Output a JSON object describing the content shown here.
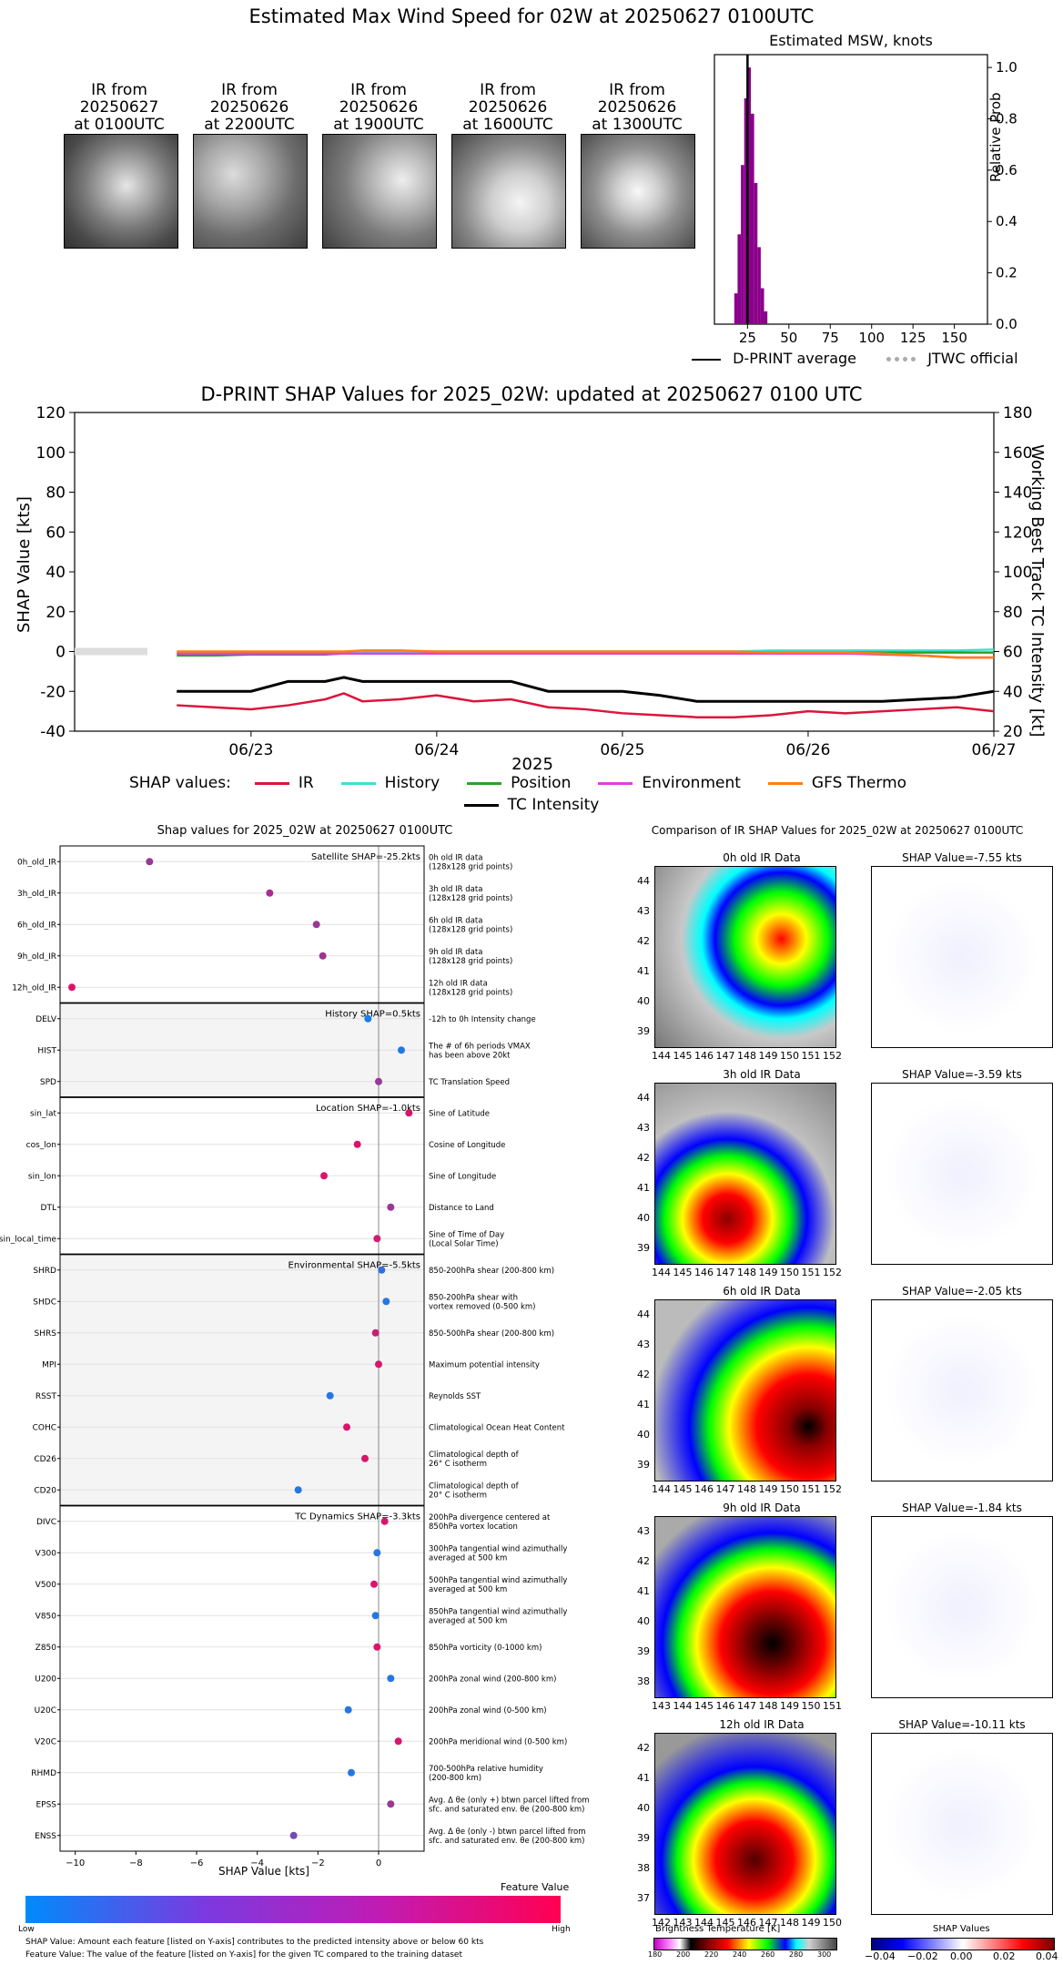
{
  "suptitle": "Estimated Max Wind Speed for 02W at 20250627 0100UTC",
  "thumbs": [
    {
      "l1": "IR from",
      "l2": "20250627",
      "l3": "at 0100UTC"
    },
    {
      "l1": "IR from",
      "l2": "20250626",
      "l3": "at 2200UTC"
    },
    {
      "l1": "IR from",
      "l2": "20250626",
      "l3": "at 1900UTC"
    },
    {
      "l1": "IR from",
      "l2": "20250626",
      "l3": "at 1600UTC"
    },
    {
      "l1": "IR from",
      "l2": "20250626",
      "l3": "at 1300UTC"
    }
  ],
  "msw": {
    "title": "Estimated MSW, knots",
    "ylabel": "Relative Prob",
    "xticks": [
      "25",
      "50",
      "75",
      "100",
      "125",
      "150"
    ],
    "yticks": [
      "0.0",
      "0.2",
      "0.4",
      "0.6",
      "0.8",
      "1.0"
    ],
    "legend_avg": "D-PRINT average",
    "legend_jtwc": "JTWC official"
  },
  "shap_ts": {
    "title": "D-PRINT SHAP Values for 2025_02W: updated at 20250627 0100 UTC",
    "ylabel_left": "SHAP Value [kts]",
    "ylabel_right": "Working Best Track TC Intensity [kt]",
    "xlabel": "2025",
    "yticks_left": [
      "120",
      "100",
      "80",
      "60",
      "40",
      "20",
      "0",
      "-20",
      "-40"
    ],
    "yticks_right": [
      "180",
      "160",
      "140",
      "120",
      "100",
      "80",
      "60",
      "40",
      "20"
    ],
    "xticks": [
      "06/23",
      "06/24",
      "06/25",
      "06/26",
      "06/27"
    ],
    "legend_prefix": "SHAP values:",
    "legend": [
      "IR",
      "History",
      "Position",
      "Environment",
      "GFS Thermo",
      "TC Intensity"
    ],
    "colors": {
      "IR": "#dc143c",
      "History": "#40e0d0",
      "Position": "#2ca02c",
      "Environment": "#e040e0",
      "GFS Thermo": "#ff7f0e",
      "TC Intensity": "#000000"
    }
  },
  "chart_data": [
    {
      "type": "bar",
      "title": "Estimated MSW, knots",
      "ylabel": "Relative Prob",
      "xlim": [
        5,
        170
      ],
      "ylim": [
        0,
        1.05
      ],
      "categories": [
        18,
        20,
        22,
        24,
        26,
        28,
        30,
        32,
        34,
        36
      ],
      "values": [
        0.12,
        0.35,
        0.62,
        0.88,
        1.0,
        0.82,
        0.55,
        0.3,
        0.14,
        0.05
      ],
      "dprint_average": 25
    },
    {
      "type": "line",
      "title": "D-PRINT SHAP Values for 2025_02W: updated at 20250627 0100 UTC",
      "xlabel": "2025",
      "ylabel": "SHAP Value [kts]",
      "ylim": [
        -40,
        120
      ],
      "y2lim": [
        20,
        180
      ],
      "x": [
        22.6,
        22.8,
        23.0,
        23.2,
        23.4,
        23.5,
        23.6,
        23.8,
        24.0,
        24.2,
        24.4,
        24.6,
        24.8,
        25.0,
        25.2,
        25.4,
        25.6,
        25.8,
        26.0,
        26.2,
        26.4,
        26.6,
        26.8,
        27.0
      ],
      "series": [
        {
          "name": "IR",
          "values": [
            -27,
            -28,
            -29,
            -27,
            -24,
            -21,
            -25,
            -24,
            -22,
            -25,
            -24,
            -28,
            -29,
            -31,
            -32,
            -33,
            -33,
            -32,
            -30,
            -31,
            -30,
            -29,
            -28,
            -30
          ]
        },
        {
          "name": "History",
          "values": [
            -1,
            -1,
            -1,
            -1,
            -0.5,
            -0.5,
            -0.5,
            0,
            0,
            0,
            0,
            0,
            0,
            0,
            0,
            0,
            0,
            0.5,
            0.5,
            0.5,
            0.5,
            0.5,
            0.5,
            1
          ]
        },
        {
          "name": "Position",
          "values": [
            -2,
            -2,
            -1.5,
            -1.5,
            -1.5,
            -1,
            -1,
            -1,
            -1,
            -1,
            -1,
            -1,
            -0.5,
            -0.5,
            -0.5,
            -0.5,
            -0.5,
            -0.5,
            -0.5,
            -0.5,
            -0.5,
            -0.5,
            -0.5,
            -0.5
          ]
        },
        {
          "name": "Environment",
          "values": [
            -1,
            -1,
            -1,
            -1,
            -1,
            -1,
            -1,
            -1,
            -1,
            -1,
            -1,
            -1,
            -1,
            -1,
            -1,
            -1,
            -1,
            -1,
            -1,
            -1,
            -1.5,
            -2,
            -3,
            -3
          ]
        },
        {
          "name": "GFS Thermo",
          "values": [
            0,
            0,
            0,
            0,
            0,
            0,
            0.5,
            0.5,
            0,
            0,
            0,
            0,
            0,
            0,
            0,
            0,
            0,
            -0.5,
            -0.5,
            -0.5,
            -1,
            -2,
            -3,
            -3
          ]
        },
        {
          "name": "TC Intensity",
          "values": [
            40,
            40,
            40,
            45,
            45,
            47,
            45,
            45,
            45,
            45,
            45,
            40,
            40,
            40,
            38,
            35,
            35,
            35,
            35,
            35,
            35,
            36,
            37,
            40
          ]
        }
      ]
    },
    {
      "type": "scatter",
      "title": "Shap values for 2025_02W at 20250627 0100UTC",
      "xlabel": "SHAP Value [kts]",
      "xlim": [
        -10.5,
        1.5
      ],
      "categories": [
        "0h_old_IR",
        "3h_old_IR",
        "6h_old_IR",
        "9h_old_IR",
        "12h_old_IR",
        "DELV",
        "HIST",
        "SPD",
        "sin_lat",
        "cos_lon",
        "sin_lon",
        "DTL",
        "sin_local_time",
        "SHRD",
        "SHDC",
        "SHRS",
        "MPI",
        "RSST",
        "COHC",
        "CD26",
        "CD20",
        "DIVC",
        "V300",
        "V500",
        "V850",
        "Z850",
        "U200",
        "U20C",
        "V20C",
        "RHMD",
        "EPSS",
        "ENSS"
      ],
      "values": [
        -7.55,
        -3.59,
        -2.05,
        -1.84,
        -10.11,
        -0.35,
        0.75,
        0.0,
        1.0,
        -0.7,
        -1.8,
        0.4,
        -0.05,
        0.1,
        0.25,
        -0.1,
        0.0,
        -1.6,
        -1.05,
        -0.45,
        -2.65,
        0.2,
        -0.05,
        -0.15,
        -0.1,
        -0.05,
        0.4,
        -1.0,
        0.65,
        -0.9,
        0.4,
        -2.8
      ],
      "feature_values": [
        0.6,
        0.65,
        0.6,
        0.62,
        0.85,
        0.1,
        0.15,
        0.6,
        0.85,
        0.85,
        0.85,
        0.6,
        0.8,
        0.2,
        0.15,
        0.8,
        0.85,
        0.15,
        0.85,
        0.85,
        0.15,
        0.85,
        0.15,
        0.85,
        0.15,
        0.85,
        0.15,
        0.15,
        0.85,
        0.15,
        0.6,
        0.45
      ]
    }
  ],
  "shap_bar": {
    "title": "Shap values for 2025_02W at 20250627 0100UTC",
    "xlabel": "SHAP Value [kts]",
    "xticks": [
      "−10",
      "−8",
      "−6",
      "−4",
      "−2",
      "0"
    ],
    "sections": [
      {
        "label": "Satellite SHAP=-25.2kts"
      },
      {
        "label": "History SHAP=0.5kts"
      },
      {
        "label": "Location SHAP=-1.0kts"
      },
      {
        "label": "Environmental SHAP=-5.5kts"
      },
      {
        "label": "TC Dynamics SHAP=-3.3kts"
      }
    ],
    "features": [
      {
        "name": "0h_old_IR",
        "desc": "0h old IR data\n(128x128 grid points)"
      },
      {
        "name": "3h_old_IR",
        "desc": "3h old IR data\n(128x128 grid points)"
      },
      {
        "name": "6h_old_IR",
        "desc": "6h old IR data\n(128x128 grid points)"
      },
      {
        "name": "9h_old_IR",
        "desc": "9h old IR data\n(128x128 grid points)"
      },
      {
        "name": "12h_old_IR",
        "desc": "12h old IR data\n(128x128 grid points)"
      },
      {
        "name": "DELV",
        "desc": "-12h to 0h Intensity change"
      },
      {
        "name": "HIST",
        "desc": "The # of 6h periods VMAX\nhas been above 20kt"
      },
      {
        "name": "SPD",
        "desc": "TC Translation Speed"
      },
      {
        "name": "sin_lat",
        "desc": "Sine of Latitude"
      },
      {
        "name": "cos_lon",
        "desc": "Cosine of Longitude"
      },
      {
        "name": "sin_lon",
        "desc": "Sine of Longitude"
      },
      {
        "name": "DTL",
        "desc": "Distance to Land"
      },
      {
        "name": "sin_local_time",
        "desc": "Sine of Time of Day\n(Local Solar Time)"
      },
      {
        "name": "SHRD",
        "desc": "850-200hPa shear (200-800 km)"
      },
      {
        "name": "SHDC",
        "desc": "850-200hPa shear with\nvortex removed (0-500 km)"
      },
      {
        "name": "SHRS",
        "desc": "850-500hPa shear (200-800 km)"
      },
      {
        "name": "MPI",
        "desc": "Maximum potential intensity"
      },
      {
        "name": "RSST",
        "desc": "Reynolds SST"
      },
      {
        "name": "COHC",
        "desc": "Climatological Ocean Heat Content"
      },
      {
        "name": "CD26",
        "desc": "Climatological depth of\n26° C isotherm"
      },
      {
        "name": "CD20",
        "desc": "Climatological depth of\n20° C isotherm"
      },
      {
        "name": "DIVC",
        "desc": "200hPa divergence centered at\n850hPa vortex location"
      },
      {
        "name": "V300",
        "desc": "300hPa tangential wind azimuthally\naveraged at 500 km"
      },
      {
        "name": "V500",
        "desc": "500hPa tangential wind azimuthally\naveraged at 500 km"
      },
      {
        "name": "V850",
        "desc": "850hPa tangential wind azimuthally\naveraged at 500 km"
      },
      {
        "name": "Z850",
        "desc": "850hPa vorticity (0-1000 km)"
      },
      {
        "name": "U200",
        "desc": "200hPa zonal wind (200-800 km)"
      },
      {
        "name": "U20C",
        "desc": "200hPa zonal wind (0-500 km)"
      },
      {
        "name": "V20C",
        "desc": "200hPa meridional wind (0-500 km)"
      },
      {
        "name": "RHMD",
        "desc": "700-500hPa relative humidity\n(200-800 km)"
      },
      {
        "name": "EPSS",
        "desc": "Avg. Δ θe (only +) btwn parcel lifted from\nsfc. and saturated env. θe (200-800 km)"
      },
      {
        "name": "ENSS",
        "desc": "Avg. Δ θe (only -) btwn parcel lifted from\nsfc. and saturated env. θe (200-800 km)"
      }
    ],
    "cbar_label": "Feature Value",
    "cbar_low": "Low",
    "cbar_high": "High",
    "foot1": "SHAP Value: Amount each feature [listed on Y-axis] contributes to the predicted intensity above or below 60 kts",
    "foot2": "Feature Value: The value of the feature [listed on Y-axis] for the given TC compared to the training dataset"
  },
  "ir_compare": {
    "title": "Comparison of IR SHAP Values for 2025_02W at 20250627 0100UTC",
    "rows": [
      {
        "ir_title": "0h old IR Data",
        "shap_title": "SHAP Value=-7.55 kts",
        "yticks": [
          "44",
          "43",
          "42",
          "41",
          "40",
          "39"
        ],
        "xticks": [
          "144",
          "145",
          "146",
          "147",
          "148",
          "149",
          "150",
          "151",
          "152"
        ]
      },
      {
        "ir_title": "3h old IR Data",
        "shap_title": "SHAP Value=-3.59 kts",
        "yticks": [
          "44",
          "43",
          "42",
          "41",
          "40",
          "39"
        ],
        "xticks": [
          "144",
          "145",
          "146",
          "147",
          "148",
          "149",
          "150",
          "151",
          "152"
        ]
      },
      {
        "ir_title": "6h old IR Data",
        "shap_title": "SHAP Value=-2.05 kts",
        "yticks": [
          "44",
          "43",
          "42",
          "41",
          "40",
          "39"
        ],
        "xticks": [
          "144",
          "145",
          "146",
          "147",
          "148",
          "149",
          "150",
          "151",
          "152"
        ]
      },
      {
        "ir_title": "9h old IR Data",
        "shap_title": "SHAP Value=-1.84 kts",
        "yticks": [
          "43",
          "42",
          "41",
          "40",
          "39",
          "38"
        ],
        "xticks": [
          "143",
          "144",
          "145",
          "146",
          "147",
          "148",
          "149",
          "150",
          "151"
        ]
      },
      {
        "ir_title": "12h old IR Data",
        "shap_title": "SHAP Value=-10.11 kts",
        "yticks": [
          "42",
          "41",
          "40",
          "39",
          "38",
          "37"
        ],
        "xticks": [
          "142",
          "143",
          "144",
          "145",
          "146",
          "147",
          "148",
          "149",
          "150"
        ]
      }
    ],
    "bt_label": "Brightness Temperature [K]",
    "bt_ticks": [
      "180",
      "200",
      "220",
      "240",
      "260",
      "280",
      "300"
    ],
    "sv_label": "SHAP Values",
    "sv_ticks": [
      "−0.04",
      "−0.02",
      "0.00",
      "0.02",
      "0.04"
    ]
  }
}
